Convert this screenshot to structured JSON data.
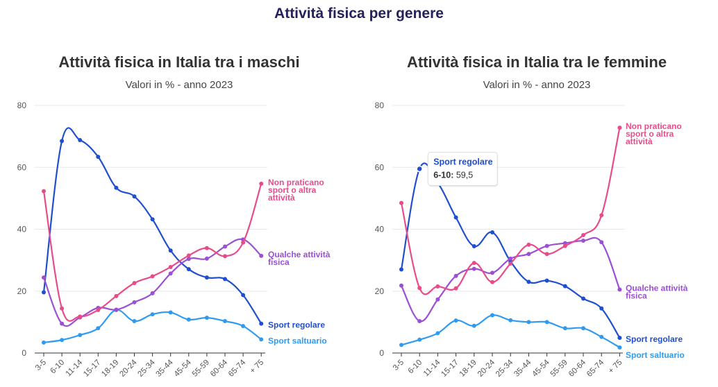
{
  "page_title": "Attività fisica per genere",
  "chart_data": [
    {
      "type": "line",
      "title": "Attività fisica in Italia tra i maschi",
      "subtitle": "Valori in % - anno 2023",
      "xlabel": "",
      "ylabel": "",
      "ylim": [
        0,
        80
      ],
      "yticks": [
        0,
        20,
        40,
        60,
        80
      ],
      "grid": true,
      "categories": [
        "3-5",
        "6-10",
        "11-14",
        "15-17",
        "18-19",
        "20-24",
        "25-34",
        "35-44",
        "45-54",
        "55-59",
        "60-64",
        "65-74",
        "+ 75"
      ],
      "series": [
        {
          "name": "Sport regolare",
          "color": "#1f4fcf",
          "values": [
            19.6,
            68.5,
            68.8,
            63.4,
            53.4,
            50.6,
            43.2,
            33.1,
            27.1,
            24.4,
            23.9,
            18.7,
            9.5
          ]
        },
        {
          "name": "Sport saltuario",
          "color": "#2f9bf0",
          "values": [
            3.4,
            4.2,
            5.8,
            8.0,
            13.9,
            10.3,
            12.5,
            13.1,
            10.8,
            11.4,
            10.3,
            8.7,
            4.4
          ]
        },
        {
          "name": "Qualche attività fisica",
          "color": "#9a4fd4",
          "values": [
            24.4,
            9.5,
            11.5,
            14.6,
            14.0,
            16.4,
            19.3,
            25.7,
            30.4,
            30.5,
            34.4,
            36.7,
            31.4
          ]
        },
        {
          "name": "Non praticano sport o altra attività",
          "color": "#e84b8a",
          "values": [
            52.3,
            14.4,
            11.8,
            13.9,
            18.4,
            22.6,
            24.8,
            27.8,
            31.5,
            33.9,
            31.3,
            35.7,
            54.7
          ]
        }
      ],
      "end_labels": [
        {
          "lines": [
            "Non praticano",
            "sport o altra",
            "attività"
          ],
          "color": "#e84b8a"
        },
        {
          "lines": [
            "Qualche attività",
            "fisica"
          ],
          "color": "#9a4fd4"
        },
        {
          "lines": [
            "Sport regolare"
          ],
          "color": "#1f4fcf"
        },
        {
          "lines": [
            "Sport saltuario"
          ],
          "color": "#2f9bf0"
        }
      ]
    },
    {
      "type": "line",
      "title": "Attività fisica in Italia tra le femmine",
      "subtitle": "Valori in % - anno 2023",
      "xlabel": "",
      "ylabel": "",
      "ylim": [
        0,
        80
      ],
      "yticks": [
        0,
        20,
        40,
        60,
        80
      ],
      "grid": true,
      "categories": [
        "3-5",
        "6-10",
        "11-14",
        "15-17",
        "18-19",
        "20-24",
        "25-34",
        "35-44",
        "45-54",
        "55-59",
        "60-64",
        "65-74",
        "+ 75"
      ],
      "series": [
        {
          "name": "Sport regolare",
          "color": "#1f4fcf",
          "values": [
            27.0,
            59.5,
            55.0,
            43.8,
            34.5,
            39.0,
            29.6,
            23.0,
            23.4,
            21.6,
            17.6,
            14.4,
            4.9
          ]
        },
        {
          "name": "Sport saltuario",
          "color": "#2f9bf0",
          "values": [
            2.6,
            4.3,
            6.4,
            10.5,
            8.8,
            12.2,
            10.6,
            10.0,
            10.0,
            8.0,
            8.0,
            5.2,
            1.8
          ]
        },
        {
          "name": "Qualche attività fisica",
          "color": "#9a4fd4",
          "values": [
            21.8,
            10.3,
            17.3,
            24.9,
            27.2,
            25.9,
            30.5,
            32.0,
            34.6,
            35.5,
            36.3,
            35.8,
            20.5
          ]
        },
        {
          "name": "Non praticano sport o altra attività",
          "color": "#e84b8a",
          "values": [
            48.5,
            21.0,
            21.5,
            20.9,
            29.1,
            22.9,
            28.9,
            35.0,
            32.0,
            34.6,
            38.1,
            44.5,
            72.8
          ]
        }
      ],
      "end_labels": [
        {
          "lines": [
            "Non praticano",
            "sport o altra",
            "attività"
          ],
          "color": "#e84b8a"
        },
        {
          "lines": [
            "Qualche attività",
            "fisica"
          ],
          "color": "#9a4fd4"
        },
        {
          "lines": [
            "Sport regolare"
          ],
          "color": "#1f4fcf"
        },
        {
          "lines": [
            "Sport saltuario"
          ],
          "color": "#2f9bf0"
        }
      ],
      "tooltip": {
        "series": "Sport regolare",
        "category": "6-10",
        "value": "59,5",
        "color": "#1f4fcf"
      }
    }
  ]
}
